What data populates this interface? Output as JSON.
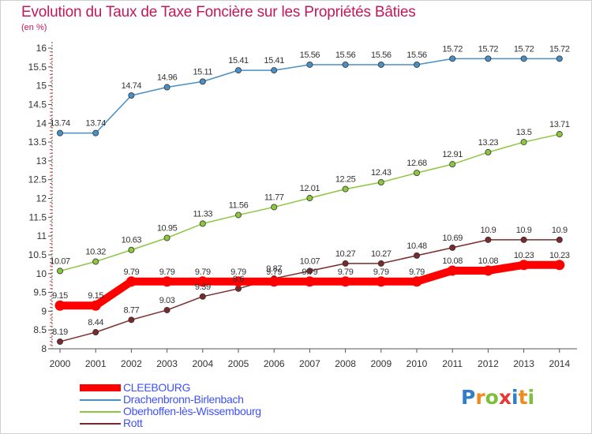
{
  "chart_data": {
    "type": "line",
    "title": "Evolution du Taux de Taxe Foncière sur les Propriétés Bâties",
    "subtitle": "(en %)",
    "x": [
      "2000",
      "2001",
      "2002",
      "2003",
      "2004",
      "2005",
      "2006",
      "2007",
      "2008",
      "2009",
      "2010",
      "2011",
      "2012",
      "2013",
      "2014"
    ],
    "ylim": [
      8,
      16
    ],
    "yticks": [
      "8",
      "8.5",
      "9",
      "9.5",
      "10",
      "10.5",
      "11",
      "11.5",
      "12",
      "12.5",
      "13",
      "13.5",
      "14",
      "14.5",
      "15",
      "15.5",
      "16"
    ],
    "grid": false,
    "legend_position": "bottom-left",
    "series": [
      {
        "name": "CLEEBOURG",
        "color": "#ff0000",
        "values": [
          9.15,
          9.15,
          9.79,
          9.79,
          9.79,
          9.79,
          9.79,
          9.79,
          9.79,
          9.79,
          9.79,
          10.08,
          10.08,
          10.23,
          10.23
        ],
        "labels": [
          "9.15",
          "9.15",
          "9.79",
          "9.79",
          "9.79",
          "9.79",
          "9.79",
          "9.79",
          "9.79",
          "9.79",
          "9.79",
          "10.08",
          "10.08",
          "10.23",
          "10.23"
        ]
      },
      {
        "name": "Drachenbronn-Birlenbach",
        "color": "#4a8fc4",
        "values": [
          13.74,
          13.74,
          14.74,
          14.96,
          15.11,
          15.41,
          15.41,
          15.56,
          15.56,
          15.56,
          15.56,
          15.72,
          15.72,
          15.72,
          15.72
        ],
        "labels": [
          "13.74",
          "13.74",
          "14.74",
          "14.96",
          "15.11",
          "15.41",
          "15.41",
          "15.56",
          "15.56",
          "15.56",
          "15.56",
          "15.72",
          "15.72",
          "15.72",
          "15.72"
        ]
      },
      {
        "name": "Oberhoffen-lès-Wissembourg",
        "color": "#8cc63f",
        "values": [
          10.07,
          10.32,
          10.63,
          10.95,
          11.33,
          11.56,
          11.77,
          12.01,
          12.25,
          12.43,
          12.68,
          12.91,
          13.23,
          13.5,
          13.71
        ],
        "labels": [
          "10.07",
          "10.32",
          "10.63",
          "10.95",
          "11.33",
          "11.56",
          "11.77",
          "12.01",
          "12.25",
          "12.43",
          "12.68",
          "12.91",
          "13.23",
          "13.5",
          "13.71"
        ]
      },
      {
        "name": "Rott",
        "color": "#7a2a2a",
        "values": [
          8.19,
          8.44,
          8.77,
          9.03,
          9.39,
          9.6,
          9.87,
          10.07,
          10.27,
          10.27,
          10.48,
          10.69,
          10.9,
          10.9,
          10.9
        ],
        "labels": [
          "8.19",
          "8.44",
          "8.77",
          "9.03",
          "9.39",
          "9.6",
          "9.87",
          "10.07",
          "10.27",
          "10.27",
          "10.48",
          "10.69",
          "10.9",
          "10.9",
          "10.9"
        ]
      }
    ]
  },
  "branding": {
    "logo_letters": [
      {
        "ch": "P",
        "color": "#2f7fc8"
      },
      {
        "ch": "r",
        "color": "#f18a1c"
      },
      {
        "ch": "o",
        "color": "#7cbf3a"
      },
      {
        "ch": "x",
        "color": "#e53935"
      },
      {
        "ch": "i",
        "color": "#2f7fc8"
      },
      {
        "ch": "t",
        "color": "#f18a1c"
      },
      {
        "ch": "i",
        "color": "#7cbf3a"
      }
    ]
  }
}
